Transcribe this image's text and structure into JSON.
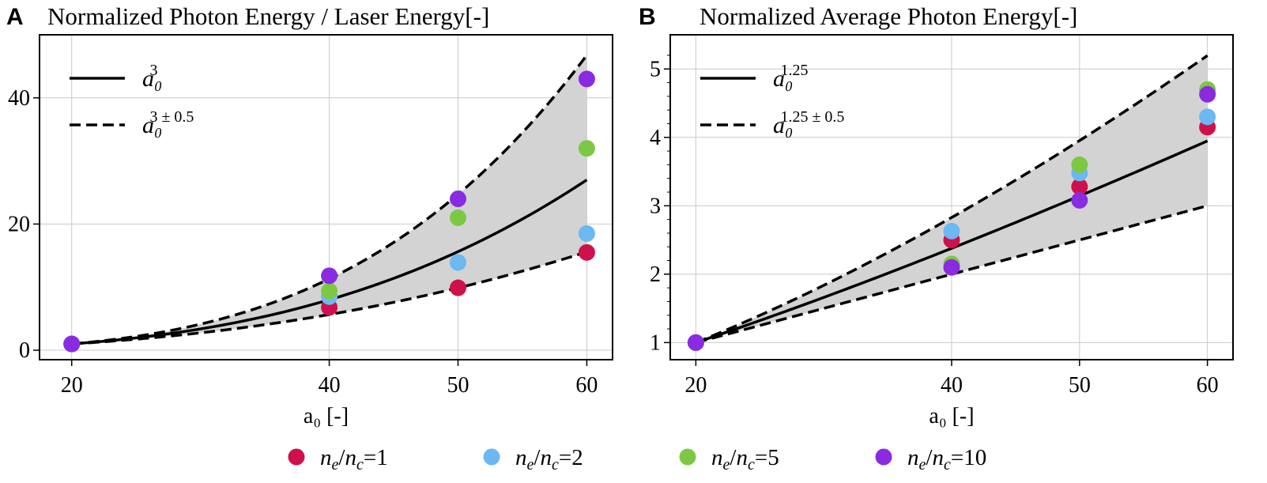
{
  "chart_data": [
    {
      "type": "scatter",
      "panel_label": "A",
      "title": "Normalized Photon Energy / Laser Energy[-]",
      "xlabel": "a₀ [-]",
      "ylabel": "",
      "xlim": [
        17.5,
        62
      ],
      "ylim": [
        -1.5,
        50
      ],
      "xticks": [
        20,
        40,
        50,
        60
      ],
      "yticks": [
        0,
        20,
        40
      ],
      "grid": true,
      "legend_placement": "top-left",
      "fits": [
        {
          "label": "a0^3",
          "base": "a₀",
          "sup": "3",
          "style": "solid",
          "exponent": 3
        },
        {
          "label": "a0^(3±0.5)",
          "base": "a₀",
          "sup": "3 ± 0.5",
          "style": "dashed",
          "exponents": [
            2.5,
            3.5
          ]
        }
      ],
      "x": [
        20,
        40,
        50,
        60
      ],
      "series": [
        {
          "name": "ne/nc=1",
          "color": "#d0104c",
          "values": [
            1,
            6.8,
            9.9,
            15.5
          ]
        },
        {
          "name": "ne/nc=2",
          "color": "#6cb8f2",
          "values": [
            1,
            8.5,
            13.9,
            18.5
          ]
        },
        {
          "name": "ne/nc=5",
          "color": "#7dc843",
          "values": [
            1,
            9.4,
            21.0,
            32.0
          ]
        },
        {
          "name": "ne/nc=10",
          "color": "#8a2be2",
          "values": [
            1,
            11.8,
            24.0,
            43.0
          ]
        }
      ]
    },
    {
      "type": "scatter",
      "panel_label": "B",
      "title": "Normalized Average Photon Energy[-]",
      "xlabel": "a₀ [-]",
      "ylabel": "",
      "xlim": [
        18,
        62
      ],
      "ylim": [
        0.75,
        5.5
      ],
      "xticks": [
        20,
        40,
        50,
        60
      ],
      "yticks": [
        1,
        2,
        3,
        4,
        5
      ],
      "grid": true,
      "legend_placement": "top-left",
      "fits": [
        {
          "label": "a0^1.25",
          "base": "a₀",
          "sup": "1.25",
          "style": "solid",
          "exponent": 1.25
        },
        {
          "label": "a0^(1.25±0.5)",
          "base": "a₀",
          "sup": "1.25 ± 0.5",
          "style": "dashed",
          "exponents": [
            1.0,
            1.5
          ]
        }
      ],
      "x": [
        20,
        40,
        50,
        60
      ],
      "series": [
        {
          "name": "ne/nc=1",
          "color": "#d0104c",
          "values": [
            1,
            2.5,
            3.28,
            4.15
          ]
        },
        {
          "name": "ne/nc=2",
          "color": "#6cb8f2",
          "values": [
            1,
            2.63,
            3.48,
            4.3
          ]
        },
        {
          "name": "ne/nc=5",
          "color": "#7dc843",
          "values": [
            1,
            2.15,
            3.6,
            4.7
          ]
        },
        {
          "name": "ne/nc=10",
          "color": "#8a2be2",
          "values": [
            1,
            2.1,
            3.08,
            4.63
          ]
        }
      ]
    }
  ],
  "legend": [
    {
      "num": "n",
      "num_sub": "e",
      "den": "n",
      "den_sub": "c",
      "value": "=1",
      "color": "#d0104c"
    },
    {
      "num": "n",
      "num_sub": "e",
      "den": "n",
      "den_sub": "c",
      "value": "=2",
      "color": "#6cb8f2"
    },
    {
      "num": "n",
      "num_sub": "e",
      "den": "n",
      "den_sub": "c",
      "value": "=5",
      "color": "#7dc843"
    },
    {
      "num": "n",
      "num_sub": "e",
      "den": "n",
      "den_sub": "c",
      "value": "=10",
      "color": "#8a2be2"
    }
  ]
}
